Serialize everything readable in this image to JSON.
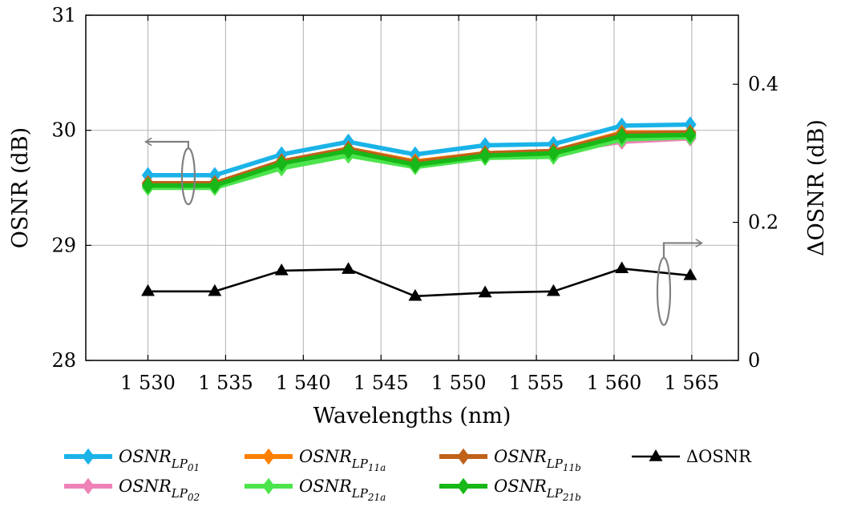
{
  "chart_data": {
    "type": "line",
    "title": "",
    "xlabel": "Wavelengths (nm)",
    "ylabel_left": "OSNR (dB)",
    "ylabel_right": "ΔOSNR (dB)",
    "xlim": [
      1526,
      1568
    ],
    "ylim_left": [
      28,
      31
    ],
    "ylim_right": [
      0,
      0.5
    ],
    "x_ticks": [
      1530,
      1535,
      1540,
      1545,
      1550,
      1555,
      1560,
      1565
    ],
    "x_tick_labels": [
      "1 530",
      "1 535",
      "1 540",
      "1 545",
      "1 550",
      "1 555",
      "1 560",
      "1 565"
    ],
    "y_left_ticks": [
      28,
      29,
      30,
      31
    ],
    "y_left_tick_labels": [
      "28",
      "29",
      "30",
      "31"
    ],
    "y_right_ticks": [
      0,
      0.2,
      0.4
    ],
    "y_right_tick_labels": [
      "0",
      "0.2",
      "0.4"
    ],
    "grid": true,
    "x": [
      1530,
      1534.3,
      1538.6,
      1542.9,
      1547.2,
      1551.7,
      1556.1,
      1560.5,
      1564.9
    ],
    "series": [
      {
        "name": "OSNR_LP01",
        "base": "OSNR",
        "sub": "LP",
        "subsub": "01",
        "axis": "left",
        "color": "#1ab3e8",
        "marker": "diamond",
        "values": [
          29.61,
          29.61,
          29.79,
          29.9,
          29.79,
          29.87,
          29.88,
          30.04,
          30.05
        ]
      },
      {
        "name": "OSNR_LP02",
        "base": "OSNR",
        "sub": "LP",
        "subsub": "02",
        "axis": "left",
        "color": "#ee82b7",
        "marker": "diamond",
        "values": [
          29.53,
          29.53,
          29.72,
          29.83,
          29.72,
          29.8,
          29.81,
          29.9,
          29.93
        ]
      },
      {
        "name": "OSNR_LP11a",
        "base": "OSNR",
        "sub": "LP",
        "subsub": "11a",
        "axis": "left",
        "color": "#ff8000",
        "marker": "diamond",
        "values": [
          29.54,
          29.54,
          29.73,
          29.84,
          29.73,
          29.8,
          29.82,
          29.98,
          29.98
        ]
      },
      {
        "name": "OSNR_LP21a",
        "base": "OSNR",
        "sub": "LP",
        "subsub": "21a",
        "axis": "left",
        "color": "#4ce44c",
        "marker": "diamond",
        "values": [
          29.5,
          29.5,
          29.67,
          29.78,
          29.68,
          29.76,
          29.77,
          29.92,
          29.94
        ]
      },
      {
        "name": "OSNR_LP11b",
        "base": "OSNR",
        "sub": "LP",
        "subsub": "11b",
        "axis": "left",
        "color": "#c0611a",
        "marker": "diamond",
        "values": [
          29.54,
          29.54,
          29.73,
          29.84,
          29.72,
          29.8,
          29.82,
          29.97,
          29.98
        ]
      },
      {
        "name": "OSNR_LP21b",
        "base": "OSNR",
        "sub": "LP",
        "subsub": "21b",
        "axis": "left",
        "color": "#17b817",
        "marker": "diamond",
        "values": [
          29.52,
          29.52,
          29.71,
          29.82,
          29.7,
          29.78,
          29.8,
          29.95,
          29.96
        ]
      },
      {
        "name": "ΔOSNR",
        "base": "ΔOSNR",
        "sub": "",
        "subsub": "",
        "axis": "right",
        "color": "#000000",
        "marker": "triangle",
        "values": [
          0.1,
          0.1,
          0.13,
          0.132,
          0.093,
          0.098,
          0.1,
          0.133,
          0.123
        ]
      }
    ],
    "annotations": [
      {
        "label": "left-axis-arrow",
        "points_to": "left",
        "applies_to": "OSNR curves"
      },
      {
        "label": "right-axis-arrow",
        "points_to": "right",
        "applies_to": "ΔOSNR curve"
      }
    ],
    "legend": {
      "placement": "bottom",
      "rows": [
        [
          "OSNR_LP01",
          "OSNR_LP11a",
          "OSNR_LP11b",
          "ΔOSNR"
        ],
        [
          "OSNR_LP02",
          "OSNR_LP21a",
          "OSNR_LP21b"
        ]
      ]
    }
  }
}
